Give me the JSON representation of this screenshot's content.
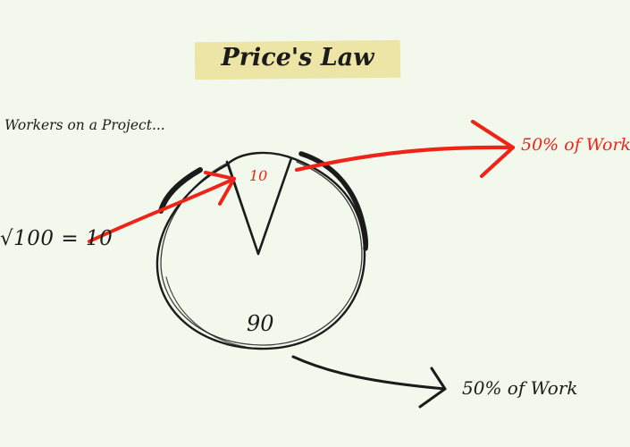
{
  "title": "Price's Law",
  "subtitle": "Workers on a Project...",
  "equation": "√100 = 10",
  "pie": {
    "wedge_value": "10",
    "rest_value": "90",
    "wedge_fraction": 0.1,
    "rest_fraction": 0.9
  },
  "arrows": {
    "top_label": "50% of Work",
    "bottom_label": "50% of Work"
  },
  "colors": {
    "background": "#f2f9ec",
    "highlight": "#ede5a6",
    "accent_red": "#ee2418",
    "ink": "#1b1b1b"
  }
}
